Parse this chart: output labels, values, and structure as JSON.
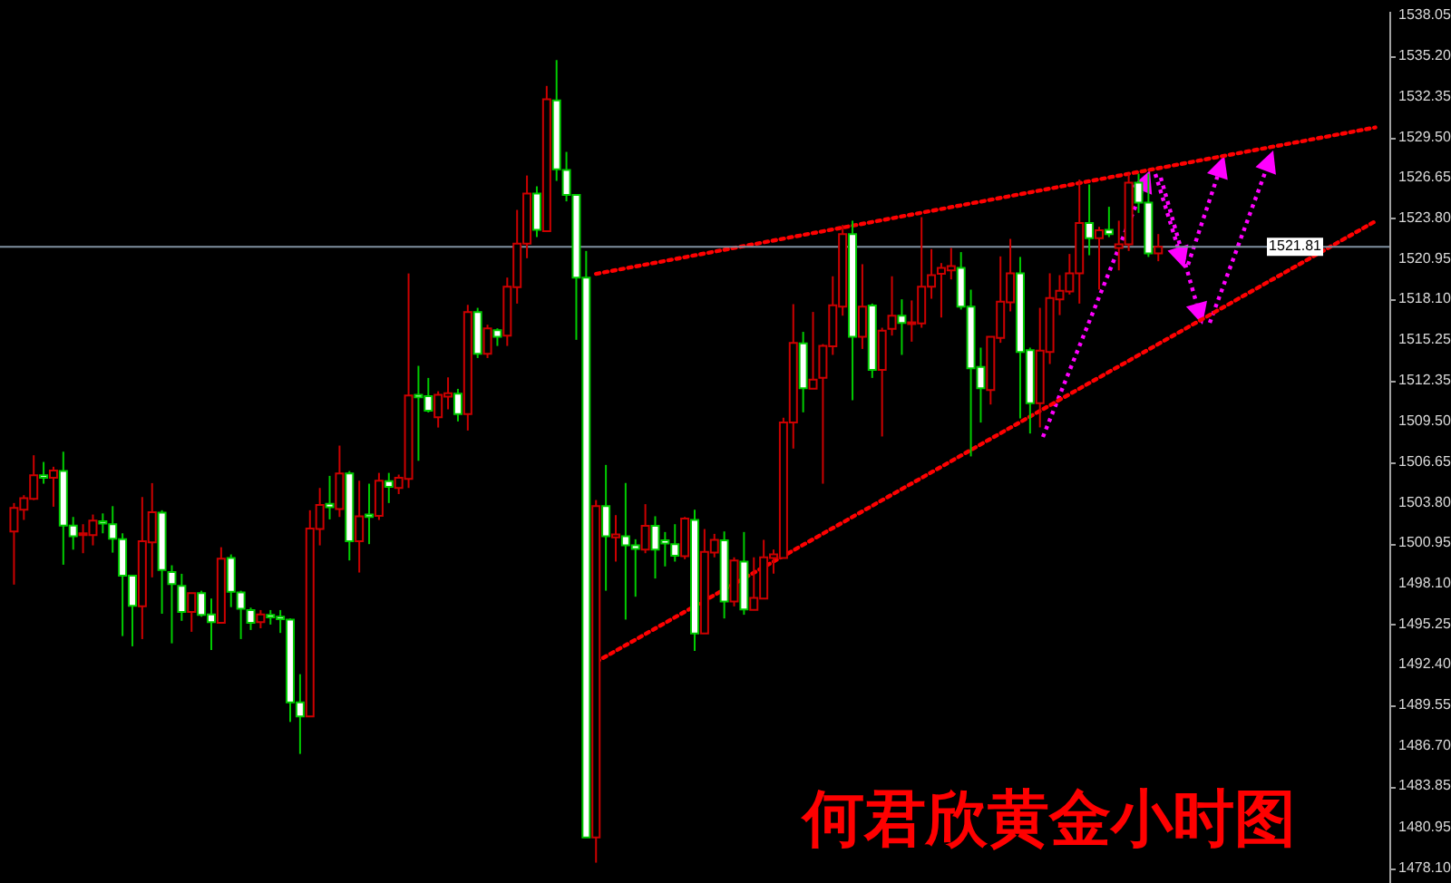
{
  "chart_data": {
    "type": "candlestick",
    "annotations": [
      "何君欣黄金小时图"
    ],
    "categories": [
      null,
      null,
      null,
      null,
      null,
      null,
      null,
      null,
      null,
      null,
      null,
      null,
      null,
      null,
      null,
      null,
      null,
      null,
      null,
      null,
      null,
      null,
      null,
      null,
      null,
      null,
      null,
      null,
      null,
      null,
      null,
      null,
      null,
      null,
      null,
      null,
      null,
      null,
      null,
      null,
      null,
      null,
      null,
      null,
      null,
      null,
      null,
      null,
      null,
      null,
      null,
      null,
      null,
      null,
      null,
      null,
      null,
      null,
      null,
      null,
      null,
      null,
      null,
      null,
      null,
      null,
      null,
      null,
      null,
      null,
      null,
      null,
      null,
      null,
      null,
      null,
      null,
      null,
      null,
      null,
      null,
      null,
      null,
      null,
      null,
      null,
      null,
      null,
      null,
      null,
      null,
      null,
      null,
      null,
      null,
      null,
      null,
      null,
      null,
      null,
      null,
      null,
      null,
      null,
      null,
      null,
      null,
      null,
      null,
      null,
      null,
      null,
      null,
      null,
      null,
      null,
      null,
      null,
      null,
      null,
      null,
      null,
      null,
      null,
      null,
      null,
      null,
      null,
      null,
      null,
      null,
      null,
      null,
      null,
      null,
      null,
      null,
      null,
      null
    ],
    "ohlc": [
      [
        1501.78,
        1503.78,
        1498.04,
        1503.44
      ],
      [
        1503.31,
        1504.33,
        1502.59,
        1504.12
      ],
      [
        1504.07,
        1507.14,
        1503.99,
        1505.73
      ],
      [
        1505.73,
        1506.67,
        1505.14,
        1505.56
      ],
      [
        1505.56,
        1506.33,
        1503.52,
        1506.07
      ],
      [
        1506.03,
        1507.39,
        1499.44,
        1502.2
      ],
      [
        1502.2,
        1502.8,
        1500.5,
        1501.44
      ],
      [
        1501.52,
        1502.29,
        1500.25,
        1501.65
      ],
      [
        1501.52,
        1502.97,
        1500.8,
        1502.54
      ],
      [
        1502.5,
        1503.05,
        1501.65,
        1502.33
      ],
      [
        1502.29,
        1503.56,
        1500.29,
        1501.27
      ],
      [
        1501.23,
        1501.65,
        1494.42,
        1498.67
      ],
      [
        1498.67,
        1498.67,
        1493.7,
        1496.55
      ],
      [
        1496.51,
        1504.2,
        1494.21,
        1501.1
      ],
      [
        1501.01,
        1505.18,
        1498.55,
        1503.14
      ],
      [
        1503.1,
        1503.27,
        1495.99,
        1499.06
      ],
      [
        1498.93,
        1499.4,
        1493.91,
        1498.08
      ],
      [
        1497.95,
        1498.8,
        1495.49,
        1496.12
      ],
      [
        1496.12,
        1497.44,
        1494.72,
        1497.44
      ],
      [
        1497.44,
        1497.61,
        1495.78,
        1495.91
      ],
      [
        1495.95,
        1497.06,
        1493.44,
        1495.4
      ],
      [
        1495.36,
        1500.67,
        1495.32,
        1499.87
      ],
      [
        1499.91,
        1500.16,
        1496.46,
        1497.53
      ],
      [
        1497.49,
        1497.61,
        1494.21,
        1496.34
      ],
      [
        1496.25,
        1496.42,
        1494.85,
        1495.36
      ],
      [
        1495.4,
        1496.25,
        1494.97,
        1495.95
      ],
      [
        1495.91,
        1496.25,
        1495.23,
        1495.74
      ],
      [
        1495.78,
        1496.25,
        1494.64,
        1495.61
      ],
      [
        1495.57,
        1495.66,
        1488.38,
        1489.75
      ],
      [
        1489.75,
        1491.74,
        1486.13,
        1488.77
      ],
      [
        1488.77,
        1503.27,
        1488.77,
        1501.99
      ],
      [
        1501.95,
        1504.84,
        1500.8,
        1503.65
      ],
      [
        1503.73,
        1505.69,
        1502.63,
        1503.48
      ],
      [
        1503.35,
        1507.82,
        1502.8,
        1505.86
      ],
      [
        1505.86,
        1506.03,
        1499.74,
        1501.1
      ],
      [
        1501.1,
        1505.35,
        1498.89,
        1502.84
      ],
      [
        1502.97,
        1505.14,
        1500.89,
        1502.8
      ],
      [
        1502.88,
        1505.9,
        1502.59,
        1505.35
      ],
      [
        1505.31,
        1505.9,
        1503.78,
        1504.92
      ],
      [
        1504.84,
        1505.78,
        1504.41,
        1505.56
      ],
      [
        1505.48,
        1519.93,
        1504.84,
        1511.34
      ],
      [
        1511.39,
        1513.43,
        1506.75,
        1511.22
      ],
      [
        1511.3,
        1512.58,
        1510.15,
        1510.28
      ],
      [
        1509.81,
        1511.64,
        1509.09,
        1511.39
      ],
      [
        1511.26,
        1512.62,
        1510.37,
        1511.51
      ],
      [
        1511.47,
        1511.81,
        1509.52,
        1510.03
      ],
      [
        1510.03,
        1517.72,
        1508.88,
        1517.21
      ],
      [
        1517.21,
        1517.51,
        1513.98,
        1514.28
      ],
      [
        1514.28,
        1516.32,
        1513.98,
        1516.07
      ],
      [
        1515.94,
        1516.07,
        1514.83,
        1515.47
      ],
      [
        1515.55,
        1519.64,
        1514.83,
        1519.0
      ],
      [
        1518.96,
        1524.4,
        1517.81,
        1522.02
      ],
      [
        1522.02,
        1526.82,
        1521.0,
        1525.55
      ],
      [
        1525.55,
        1526.06,
        1522.49,
        1523.0
      ],
      [
        1522.91,
        1533.12,
        1522.91,
        1532.18
      ],
      [
        1532.1,
        1534.94,
        1526.44,
        1527.25
      ],
      [
        1527.2,
        1528.48,
        1525.0,
        1525.46
      ],
      [
        1525.46,
        1525.46,
        1515.26,
        1519.64
      ],
      [
        1519.64,
        1521.51,
        1480.26,
        1480.26
      ],
      [
        1480.26,
        1503.99,
        1478.48,
        1503.56
      ],
      [
        1503.56,
        1506.46,
        1497.61,
        1501.44
      ],
      [
        1501.36,
        1502.93,
        1499.66,
        1501.57
      ],
      [
        1501.44,
        1505.19,
        1495.58,
        1500.81
      ],
      [
        1500.81,
        1501.23,
        1497.19,
        1500.55
      ],
      [
        1500.51,
        1503.7,
        1500.25,
        1502.17
      ],
      [
        1502.17,
        1502.85,
        1498.47,
        1500.51
      ],
      [
        1501.15,
        1501.74,
        1499.32,
        1500.93
      ],
      [
        1500.89,
        1502.29,
        1499.66,
        1500.08
      ],
      [
        1500.04,
        1502.8,
        1499.83,
        1502.68
      ],
      [
        1502.59,
        1503.31,
        1493.37,
        1494.6
      ],
      [
        1494.6,
        1501.95,
        1494.6,
        1500.34
      ],
      [
        1500.3,
        1501.61,
        1499.96,
        1501.19
      ],
      [
        1501.15,
        1501.78,
        1495.66,
        1496.85
      ],
      [
        1496.85,
        1499.96,
        1496.51,
        1499.74
      ],
      [
        1499.66,
        1501.74,
        1495.92,
        1496.3
      ],
      [
        1496.26,
        1499.96,
        1496.26,
        1497.11
      ],
      [
        1497.06,
        1501.19,
        1497.02,
        1499.96
      ],
      [
        1499.91,
        1500.51,
        1498.81,
        1500.17
      ],
      [
        1499.91,
        1509.78,
        1499.91,
        1509.44
      ],
      [
        1509.44,
        1517.77,
        1507.61,
        1515.05
      ],
      [
        1515.01,
        1515.82,
        1510.16,
        1511.86
      ],
      [
        1511.82,
        1517.22,
        1511.82,
        1512.46
      ],
      [
        1512.58,
        1514.96,
        1505.14,
        1514.84
      ],
      [
        1514.8,
        1519.73,
        1514.2,
        1517.69
      ],
      [
        1517.6,
        1523.34,
        1516.96,
        1522.7
      ],
      [
        1522.7,
        1523.64,
        1511.01,
        1515.47
      ],
      [
        1515.47,
        1520.58,
        1514.62,
        1517.6
      ],
      [
        1517.68,
        1517.81,
        1512.58,
        1513.14
      ],
      [
        1513.14,
        1516.11,
        1508.46,
        1515.9
      ],
      [
        1516.03,
        1519.73,
        1515.56,
        1516.96
      ],
      [
        1516.96,
        1518.11,
        1514.2,
        1516.45
      ],
      [
        1516.37,
        1518.03,
        1515.13,
        1516.49
      ],
      [
        1516.41,
        1523.89,
        1516.11,
        1519.0
      ],
      [
        1519.0,
        1521.64,
        1518.15,
        1519.81
      ],
      [
        1519.9,
        1520.66,
        1516.83,
        1520.32
      ],
      [
        1520.15,
        1521.72,
        1519.51,
        1520.45
      ],
      [
        1520.32,
        1521.43,
        1517.39,
        1517.6
      ],
      [
        1517.6,
        1518.79,
        1507.06,
        1513.26
      ],
      [
        1513.35,
        1514.71,
        1509.44,
        1511.86
      ],
      [
        1511.73,
        1515.47,
        1510.71,
        1515.47
      ],
      [
        1515.39,
        1521.13,
        1515.05,
        1517.94
      ],
      [
        1517.9,
        1522.36,
        1517.26,
        1519.94
      ],
      [
        1519.94,
        1521.09,
        1509.73,
        1514.41
      ],
      [
        1514.54,
        1514.71,
        1508.67,
        1510.8
      ],
      [
        1510.8,
        1517.51,
        1509.1,
        1514.5
      ],
      [
        1514.41,
        1519.94,
        1513.56,
        1518.2
      ],
      [
        1518.11,
        1519.81,
        1517.0,
        1518.71
      ],
      [
        1518.66,
        1521.3,
        1518.45,
        1519.94
      ],
      [
        1519.94,
        1526.53,
        1517.81,
        1523.47
      ],
      [
        1523.47,
        1526.19,
        1521.21,
        1522.41
      ],
      [
        1522.41,
        1523.21,
        1518.79,
        1522.96
      ],
      [
        1523.0,
        1524.62,
        1522.49,
        1522.7
      ],
      [
        1521.72,
        1523.64,
        1520.15,
        1521.98
      ],
      [
        1521.98,
        1526.95,
        1521.51,
        1526.32
      ],
      [
        1526.32,
        1526.95,
        1524.19,
        1524.91
      ],
      [
        1524.91,
        1526.95,
        1521.09,
        1521.34
      ],
      [
        1521.34,
        1522.7,
        1520.79,
        1521.81
      ],
      null,
      null,
      null,
      null,
      null,
      null,
      null,
      null,
      null,
      null,
      null,
      null,
      null,
      null,
      null,
      null,
      null,
      null,
      null,
      null,
      null,
      null
    ],
    "colors": [
      "#cc0000",
      "#cc0000",
      "#cc0000",
      "#00cc00",
      "#cc0000",
      "#00cc00",
      "#00cc00",
      "#cc0000",
      "#cc0000",
      "#00cc00",
      "#00cc00",
      "#00cc00",
      "#00cc00",
      "#cc0000",
      "#cc0000",
      "#00cc00",
      "#00cc00",
      "#00cc00",
      "#cc0000",
      "#00cc00",
      "#00cc00",
      "#cc0000",
      "#00cc00",
      "#00cc00",
      "#00cc00",
      "#cc0000",
      "#00cc00",
      "#00cc00",
      "#00cc00",
      "#00cc00",
      "#cc0000",
      "#cc0000",
      "#00cc00",
      "#cc0000",
      "#00cc00",
      "#cc0000",
      "#00cc00",
      "#cc0000",
      "#00cc00",
      "#cc0000",
      "#cc0000",
      "#00cc00",
      "#00cc00",
      "#cc0000",
      "#cc0000",
      "#00cc00",
      "#cc0000",
      "#00cc00",
      "#cc0000",
      "#00cc00",
      "#cc0000",
      "#cc0000",
      "#cc0000",
      "#00cc00",
      "#cc0000",
      "#00cc00",
      "#00cc00",
      "#00cc00",
      "#00cc00",
      "#cc0000",
      "#00cc00",
      "#cc0000",
      "#00cc00",
      "#00cc00",
      "#cc0000",
      "#00cc00",
      "#00cc00",
      "#00cc00",
      "#cc0000",
      "#00cc00",
      "#cc0000",
      "#cc0000",
      "#00cc00",
      "#cc0000",
      "#00cc00",
      "#cc0000",
      "#cc0000",
      "#cc0000",
      "#cc0000",
      "#cc0000",
      "#00cc00",
      "#cc0000",
      "#cc0000",
      "#cc0000",
      "#cc0000",
      "#00cc00",
      "#cc0000",
      "#00cc00",
      "#cc0000",
      "#cc0000",
      "#00cc00",
      "#cc0000",
      "#cc0000",
      "#cc0000",
      "#cc0000",
      "#cc0000",
      "#00cc00",
      "#00cc00",
      "#00cc00",
      "#cc0000",
      "#cc0000",
      "#cc0000",
      "#00cc00",
      "#00cc00",
      "#cc0000",
      "#cc0000",
      "#cc0000",
      "#cc0000",
      "#cc0000",
      "#00cc00",
      "#cc0000",
      "#00cc00",
      "#cc0000",
      "#cc0000",
      "#00cc00",
      "#00cc00",
      "#cc0000",
      null,
      null,
      null,
      null,
      null,
      null,
      null,
      null,
      null,
      null,
      null,
      null,
      null,
      null,
      null,
      null,
      null,
      null,
      null,
      null,
      null,
      null
    ],
    "series": [
      {
        "type": "line",
        "color": "#ff0000",
        "line_style": "dotted",
        "values": [
          null,
          null,
          null,
          null,
          null,
          null,
          null,
          null,
          null,
          null,
          null,
          null,
          null,
          null,
          null,
          null,
          null,
          null,
          null,
          null,
          null,
          null,
          null,
          null,
          null,
          null,
          null,
          null,
          null,
          null,
          null,
          null,
          null,
          null,
          null,
          null,
          null,
          null,
          null,
          null,
          null,
          null,
          null,
          null,
          null,
          null,
          null,
          null,
          null,
          null,
          null,
          null,
          null,
          null,
          null,
          null,
          null,
          null,
          null,
          1519.9,
          null,
          null,
          null,
          null,
          null,
          null,
          null,
          null,
          null,
          null,
          null,
          null,
          null,
          null,
          null,
          null,
          null,
          null,
          null,
          null,
          null,
          null,
          null,
          null,
          null,
          null,
          null,
          null,
          null,
          null,
          null,
          null,
          null,
          null,
          null,
          null,
          null,
          null,
          null,
          null,
          null,
          null,
          null,
          null,
          null,
          null,
          null,
          null,
          null,
          null,
          null,
          null,
          null,
          null,
          null,
          null,
          null,
          null,
          null,
          null,
          null,
          null,
          null,
          null,
          null,
          null,
          null,
          null,
          null,
          null,
          null,
          null,
          null,
          null,
          null,
          null,
          null,
          null,
          1530.2
        ]
      },
      {
        "type": "line",
        "color": "#ff0000",
        "line_style": "dotted",
        "values": [
          null,
          null,
          null,
          null,
          null,
          null,
          null,
          null,
          null,
          null,
          null,
          null,
          null,
          null,
          null,
          null,
          null,
          null,
          null,
          null,
          null,
          null,
          null,
          null,
          null,
          null,
          null,
          null,
          null,
          null,
          null,
          null,
          null,
          null,
          null,
          null,
          null,
          null,
          null,
          null,
          null,
          null,
          null,
          null,
          null,
          null,
          null,
          null,
          null,
          null,
          null,
          null,
          null,
          null,
          null,
          null,
          null,
          null,
          null,
          1492.6,
          null,
          null,
          null,
          null,
          null,
          null,
          null,
          null,
          null,
          null,
          null,
          null,
          null,
          null,
          null,
          null,
          null,
          null,
          null,
          null,
          null,
          null,
          null,
          null,
          null,
          null,
          null,
          null,
          null,
          null,
          null,
          null,
          null,
          null,
          null,
          null,
          null,
          null,
          null,
          null,
          null,
          null,
          null,
          null,
          null,
          null,
          null,
          null,
          null,
          null,
          null,
          null,
          null,
          null,
          null,
          null,
          null,
          null,
          null,
          null,
          null,
          null,
          null,
          null,
          null,
          null,
          null,
          null,
          null,
          null,
          null,
          null,
          null,
          null,
          null,
          null,
          null,
          null,
          1523.6
        ]
      }
    ],
    "ref_lines": [
      {
        "axis": "y",
        "value": 1521.81,
        "label": "1521.81",
        "color": "#8090a0"
      }
    ],
    "ylim": [
      1477.05,
      1538.4
    ],
    "yticks": [
      {
        "value": 1478.1,
        "label": "1478.10"
      },
      1480.95,
      1483.85,
      {
        "value": 1486.7,
        "label": "1486.70"
      },
      1489.55,
      {
        "value": 1492.4,
        "label": "1492.40"
      },
      1495.25,
      {
        "value": 1498.1,
        "label": "1498.10"
      },
      1500.95,
      {
        "value": 1503.8,
        "label": "1503.80"
      },
      1506.65,
      {
        "value": 1509.5,
        "label": "1509.50"
      },
      1512.35,
      1515.25,
      {
        "value": 1518.1,
        "label": "1518.10"
      },
      1520.95,
      {
        "value": 1523.8,
        "label": "1523.80"
      },
      1526.65,
      {
        "value": 1529.5,
        "label": "1529.50"
      },
      1532.35,
      {
        "value": 1535.2,
        "label": "1535.20"
      },
      1538.05
    ],
    "tick_labels": "y"
  }
}
